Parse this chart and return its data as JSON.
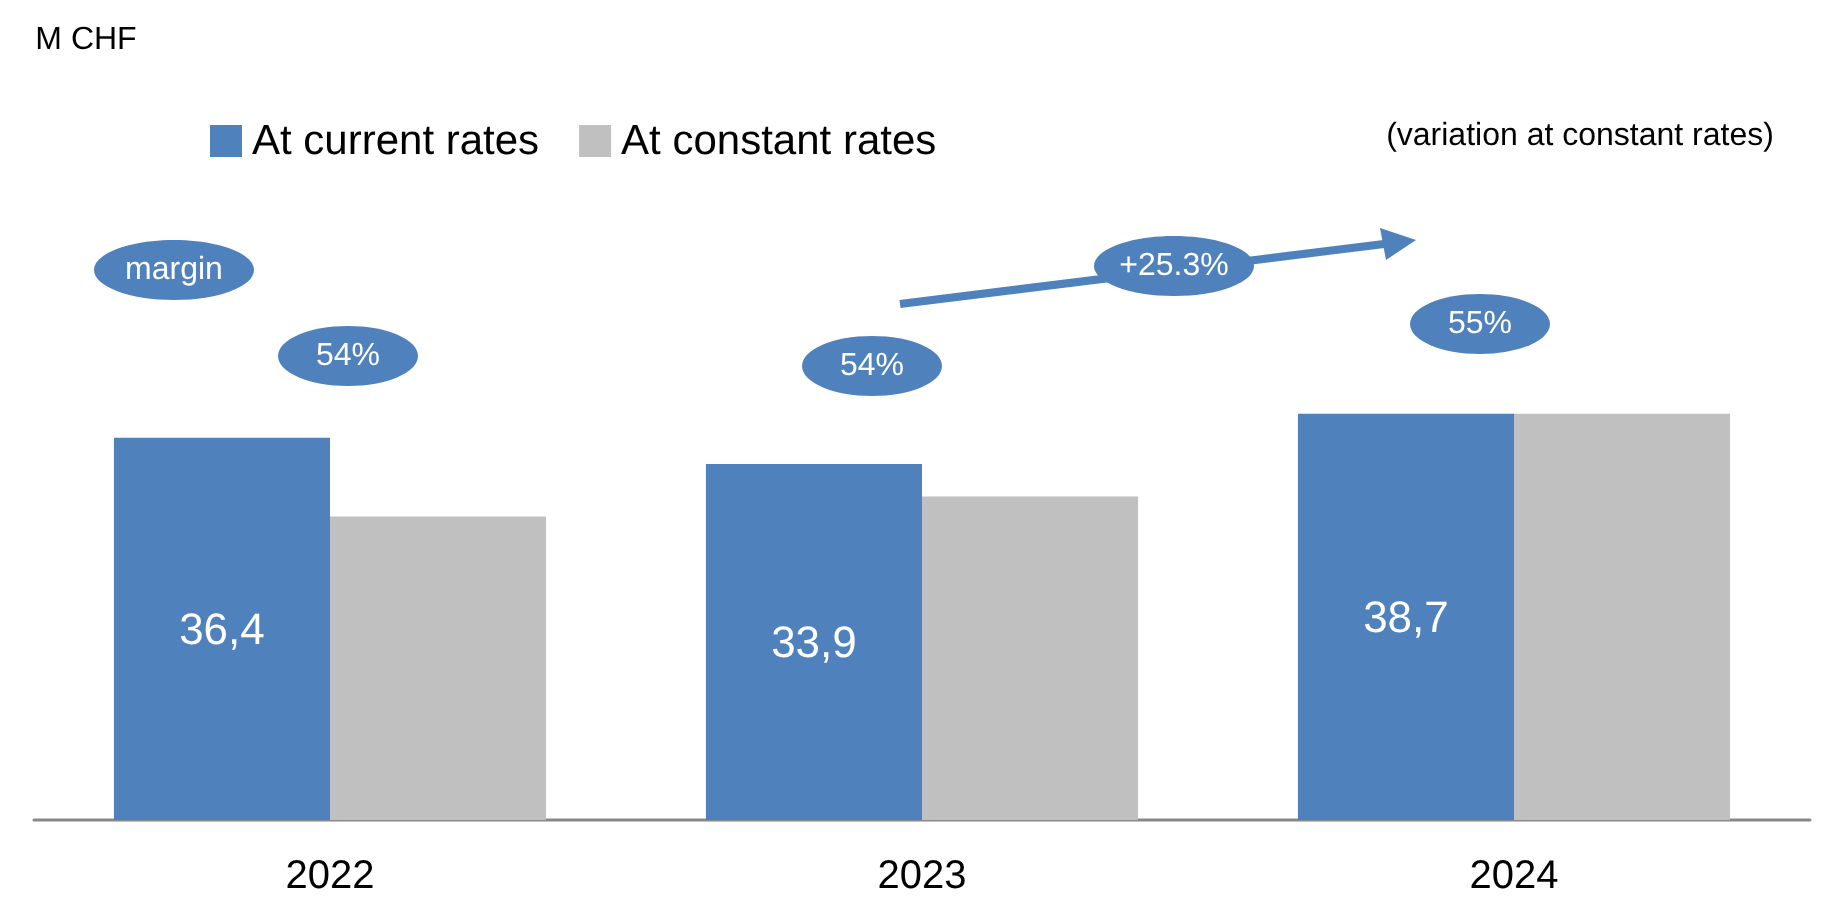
{
  "chart_data": {
    "type": "bar",
    "categories": [
      "2022",
      "2023",
      "2024"
    ],
    "series": [
      {
        "name": "At current rates",
        "color": "#4f81bd",
        "values": [
          36.4,
          33.9,
          38.7
        ],
        "value_labels": [
          "36,4",
          "33,9",
          "38,7"
        ]
      },
      {
        "name": "At constant rates",
        "color": "#c0c0c0",
        "values": [
          28.9,
          30.8,
          38.7
        ]
      }
    ],
    "legend": "top left",
    "grid": false,
    "annotations": [
      "M CHF",
      "(variation at constant rates)",
      "margin",
      "54%",
      "54%",
      "55%",
      "+25.3%"
    ]
  }
}
